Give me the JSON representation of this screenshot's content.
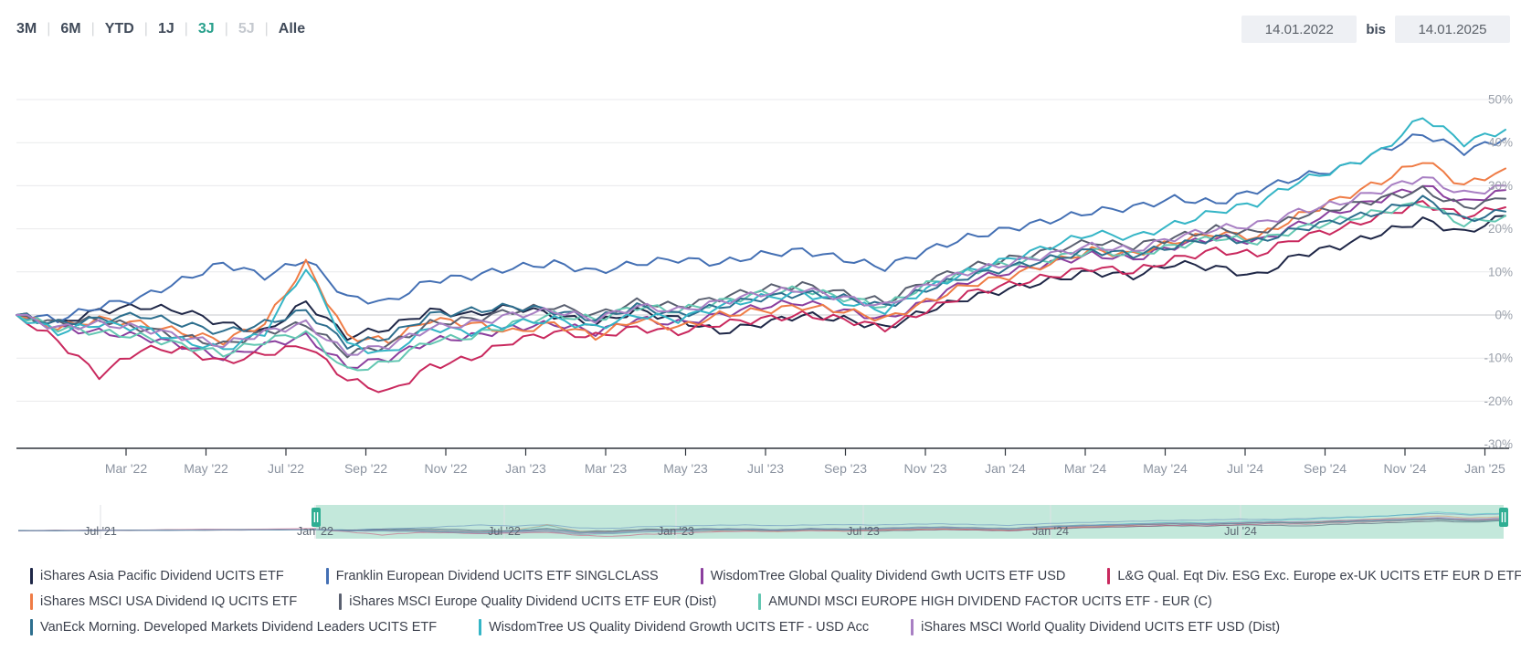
{
  "header": {
    "range_options": [
      {
        "label": "3M",
        "state": "default"
      },
      {
        "label": "6M",
        "state": "default"
      },
      {
        "label": "YTD",
        "state": "default"
      },
      {
        "label": "1J",
        "state": "default"
      },
      {
        "label": "3J",
        "state": "active"
      },
      {
        "label": "5J",
        "state": "disabled"
      },
      {
        "label": "Alle",
        "state": "default"
      }
    ],
    "date_from": "14.01.2022",
    "date_separator": "bis",
    "date_to": "14.01.2025"
  },
  "chart_data": {
    "type": "line",
    "title": "",
    "unit": "percent-return",
    "ylim": [
      -30,
      50
    ],
    "grid": true,
    "legend_position": "bottom",
    "y_ticks": [
      "50%",
      "40%",
      "30%",
      "20%",
      "10%",
      "0%",
      "-10%",
      "-20%",
      "-30%"
    ],
    "y_tick_values": [
      50,
      40,
      30,
      20,
      10,
      0,
      -10,
      -20,
      -30
    ],
    "x_ticks": [
      "Mar '22",
      "May '22",
      "Jul '22",
      "Sep '22",
      "Nov '22",
      "Jan '23",
      "Mar '23",
      "May '23",
      "Jul '23",
      "Sep '23",
      "Nov '23",
      "Jan '24",
      "Mar '24",
      "May '24",
      "Jul '24",
      "Sep '24",
      "Nov '24",
      "Jan '25"
    ],
    "x_range": [
      "14.01.2022",
      "14.01.2025"
    ],
    "x_resolution": "monthly",
    "series": [
      {
        "name": "iShares Asia Pacific Dividend UCITS ETF",
        "color": "#1f2747",
        "values": [
          0,
          -2,
          1,
          2,
          1,
          -2,
          -4,
          3,
          -5,
          -3,
          1,
          0,
          2,
          0,
          -2,
          1,
          -1,
          -4,
          -2,
          0,
          -1,
          -3,
          1,
          4,
          6,
          8,
          10,
          9,
          12,
          11,
          9,
          14,
          16,
          19,
          22,
          19,
          23
        ]
      },
      {
        "name": "Franklin European Dividend UCITS ETF SINGLCLASS",
        "color": "#4470b4",
        "values": [
          0,
          -1,
          2,
          4,
          8,
          12,
          9,
          13,
          4,
          3,
          8,
          9,
          11,
          12,
          10,
          12,
          13,
          12,
          14,
          15,
          13,
          11,
          15,
          18,
          20,
          22,
          24,
          25,
          27,
          26,
          29,
          32,
          34,
          38,
          42,
          38,
          41
        ]
      },
      {
        "name": "WisdomTree Global Quality Dividend Gwth UCITS ETF USD",
        "color": "#8b3f9e",
        "values": [
          0,
          -3,
          -4,
          -5,
          -7,
          -10,
          -7,
          -5,
          -12,
          -10,
          -6,
          -5,
          -3,
          -2,
          -4,
          -1,
          -2,
          0,
          2,
          3,
          1,
          -1,
          3,
          8,
          10,
          12,
          14,
          13,
          16,
          18,
          17,
          21,
          24,
          27,
          30,
          26,
          29
        ]
      },
      {
        "name": "L&G Qual. Eqt Div. ESG Exc. Europe ex-UK UCITS ETF EUR D ETF",
        "color": "#c9295e",
        "values": [
          0,
          -6,
          -14,
          -8,
          -8,
          -11,
          -9,
          -7,
          -15,
          -18,
          -12,
          -10,
          -6,
          -4,
          -5,
          -3,
          -4,
          -2,
          -1,
          0,
          -1,
          -3,
          1,
          5,
          7,
          9,
          11,
          10,
          13,
          15,
          14,
          18,
          20,
          23,
          26,
          23,
          25
        ]
      },
      {
        "name": "iShares MSCI USA Dividend IQ UCITS ETF",
        "color": "#ef7c46",
        "values": [
          0,
          -3,
          -1,
          -2,
          -4,
          -6,
          -2,
          12,
          -5,
          -6,
          -1,
          -2,
          -4,
          -2,
          -5,
          -1,
          -3,
          0,
          1,
          2,
          1,
          -1,
          3,
          7,
          9,
          12,
          15,
          14,
          17,
          19,
          18,
          23,
          27,
          31,
          36,
          30,
          34
        ]
      },
      {
        "name": "iShares MSCI Europe Quality Dividend UCITS ETF EUR (Dist)",
        "color": "#5a6070",
        "values": [
          0,
          -2,
          -1,
          -3,
          -5,
          -7,
          -4,
          -2,
          -9,
          -7,
          -2,
          -1,
          1,
          2,
          0,
          3,
          2,
          4,
          6,
          7,
          5,
          3,
          8,
          11,
          13,
          15,
          17,
          16,
          18,
          20,
          19,
          23,
          25,
          27,
          29,
          25,
          27
        ]
      },
      {
        "name": "AMUNDI MSCI EUROPE HIGH DIVIDEND FACTOR UCITS ETF - EUR (C)",
        "color": "#63c7b2",
        "values": [
          0,
          -3,
          -4,
          -5,
          -7,
          -9,
          -6,
          -4,
          -13,
          -11,
          -6,
          -5,
          -2,
          0,
          -1,
          2,
          1,
          3,
          5,
          6,
          4,
          2,
          7,
          10,
          12,
          13,
          15,
          14,
          16,
          18,
          17,
          20,
          22,
          24,
          26,
          21,
          23
        ]
      },
      {
        "name": "VanEck Morning. Developed Markets Dividend Leaders UCITS ETF",
        "color": "#2e6f8e",
        "values": [
          0,
          -2,
          -1,
          0,
          -2,
          -4,
          -2,
          1,
          -7,
          -5,
          0,
          1,
          2,
          1,
          -1,
          2,
          0,
          2,
          4,
          5,
          4,
          2,
          6,
          9,
          11,
          13,
          15,
          14,
          16,
          18,
          17,
          20,
          22,
          24,
          27,
          22,
          24
        ]
      },
      {
        "name": "WisdomTree US Quality Dividend Growth UCITS ETF - USD Acc",
        "color": "#34b5c6",
        "values": [
          0,
          -4,
          -2,
          -3,
          -6,
          -8,
          -4,
          11,
          -7,
          -9,
          -3,
          -4,
          -2,
          -1,
          -3,
          0,
          -1,
          2,
          4,
          5,
          3,
          1,
          6,
          10,
          13,
          16,
          19,
          18,
          21,
          24,
          26,
          31,
          34,
          38,
          46,
          40,
          43
        ]
      },
      {
        "name": "iShares MSCI World Quality Dividend UCITS ETF USD (Dist)",
        "color": "#a87fc3",
        "values": [
          0,
          -3,
          -2,
          -3,
          -5,
          -7,
          -4,
          -2,
          -9,
          -7,
          -3,
          -2,
          0,
          1,
          -1,
          2,
          1,
          3,
          5,
          6,
          4,
          2,
          7,
          10,
          12,
          14,
          16,
          15,
          18,
          20,
          21,
          24,
          26,
          29,
          32,
          28,
          30
        ]
      }
    ]
  },
  "navigator": {
    "x_ticks": [
      "Jul '21",
      "Jan '22",
      "Jul '22",
      "Jan '23",
      "Jul '23",
      "Jan '24",
      "Jul '24"
    ],
    "selection": {
      "from": "Jan '22",
      "to": "Jan '25"
    },
    "selected_bg": "#c3e8db",
    "handle_color": "#2fae93",
    "handle_glyph": "||"
  },
  "legend": {
    "rows": [
      [
        0,
        1,
        2,
        3
      ],
      [
        4,
        5,
        6
      ],
      [
        7,
        8,
        9
      ]
    ]
  },
  "colors": {
    "accent_teal": "#29a08c",
    "axis_line": "#2f343b",
    "grid_line": "#e9eaec",
    "zero_line": "#c7c9cd",
    "y_tick_text": "#9ba1ab",
    "x_tick_text": "#8b93a0",
    "nav_tick_text": "#5a6470"
  }
}
